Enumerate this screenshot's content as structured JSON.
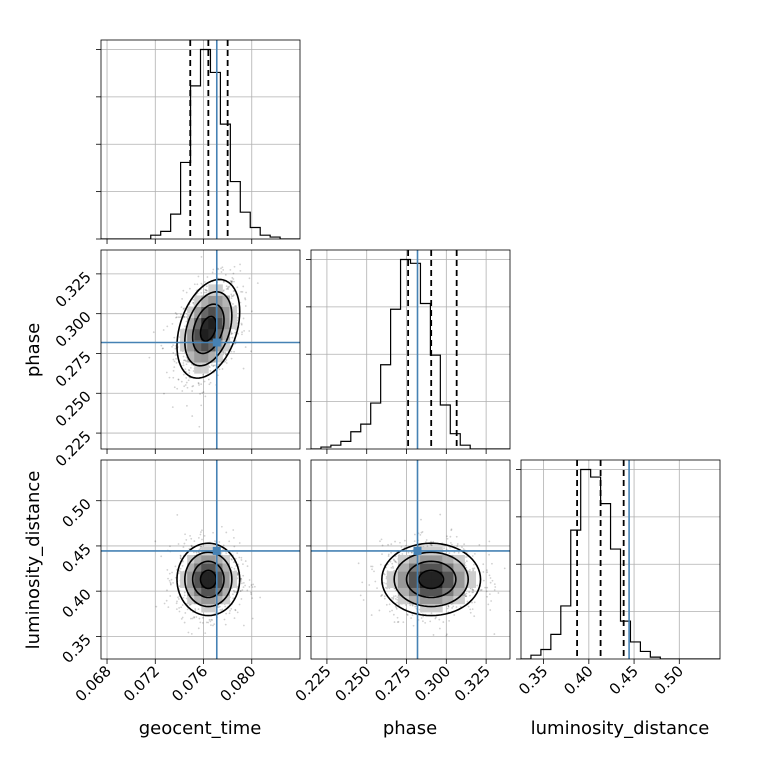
{
  "chart_data": {
    "type": "corner",
    "parameters": [
      "geocent_time",
      "phase",
      "luminosity_distance"
    ],
    "axis_labels": {
      "x": [
        "geocent_time",
        "phase",
        "luminosity_distance"
      ],
      "y": [
        "",
        "phase",
        "luminosity_distance"
      ]
    },
    "ranges": [
      [
        0.0675,
        0.084
      ],
      [
        0.215,
        0.34
      ],
      [
        0.325,
        0.545
      ]
    ],
    "ticks": [
      {
        "values": [
          0.068,
          0.072,
          0.076,
          0.08
        ],
        "labels": [
          "0.068",
          "0.072",
          "0.076",
          "0.080"
        ]
      },
      {
        "values": [
          0.225,
          0.25,
          0.275,
          0.3,
          0.325
        ],
        "labels": [
          "0.225",
          "0.250",
          "0.275",
          "0.300",
          "0.325"
        ]
      },
      {
        "values": [
          0.35,
          0.4,
          0.45,
          0.5
        ],
        "labels": [
          "0.35",
          "0.40",
          "0.45",
          "0.50"
        ]
      }
    ],
    "truths": [
      0.0771,
      0.2819,
      0.4445
    ],
    "truth_color": "#4682b4",
    "quantiles": [
      [
        0.0749,
        0.0764,
        0.078
      ],
      [
        0.276,
        0.2905,
        0.3065
      ],
      [
        0.387,
        0.413,
        0.4385
      ]
    ],
    "histograms": [
      {
        "edges_range": [
          0.0675,
          0.084
        ],
        "counts": [
          0,
          0,
          0,
          0,
          0,
          2,
          4,
          13,
          40,
          80,
          99,
          87,
          60,
          30,
          14,
          6,
          2,
          1,
          0,
          0
        ]
      },
      {
        "edges_range": [
          0.215,
          0.34
        ],
        "counts": [
          0,
          1,
          2,
          4,
          9,
          13,
          24,
          44,
          73,
          99,
          97,
          76,
          49,
          23,
          8,
          2,
          0,
          0,
          0,
          0
        ]
      },
      {
        "edges_range": [
          0.325,
          0.545
        ],
        "counts": [
          0,
          2,
          5,
          13,
          28,
          68,
          100,
          96,
          82,
          58,
          20,
          9,
          4,
          1,
          0,
          0,
          0,
          0,
          0,
          0
        ]
      }
    ],
    "means": [
      0.0764,
      0.2905,
      0.413
    ],
    "sigmas": [
      0.0013,
      0.0155,
      0.02
    ],
    "correlations": {
      "geocent_time-phase": 0.35,
      "geocent_time-luminosity_distance": 0.0,
      "phase-luminosity_distance": 0.0
    },
    "grid": true
  }
}
